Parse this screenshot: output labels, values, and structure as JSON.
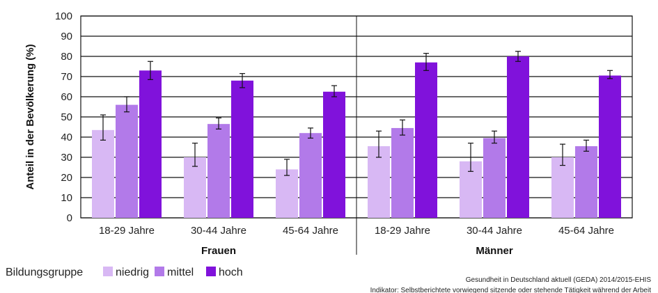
{
  "chart_data": {
    "type": "bar",
    "title": "",
    "ylabel": "Anteil in der Bevölkerung (%)",
    "ylim": [
      0,
      100
    ],
    "yticks": [
      0,
      10,
      20,
      30,
      40,
      50,
      60,
      70,
      80,
      90,
      100
    ],
    "grid": true,
    "groups": [
      {
        "name": "Frauen",
        "categories": [
          "18-29 Jahre",
          "30-44 Jahre",
          "45-64 Jahre"
        ],
        "series": [
          {
            "name": "niedrig",
            "values": [
              43.5,
              30,
              24
            ],
            "error_low": [
              38.5,
              25.5,
              21
            ],
            "error_high": [
              51,
              37,
              29
            ]
          },
          {
            "name": "mittel",
            "values": [
              56,
              46.5,
              42
            ],
            "error_low": [
              52.5,
              44,
              39.5
            ],
            "error_high": [
              60,
              49.5,
              44.5
            ]
          },
          {
            "name": "hoch",
            "values": [
              73,
              68,
              62.5
            ],
            "error_low": [
              68.5,
              64.5,
              60
            ],
            "error_high": [
              77.5,
              71.5,
              65.5
            ]
          }
        ]
      },
      {
        "name": "Männer",
        "categories": [
          "18-29 Jahre",
          "30-44 Jahre",
          "45-64 Jahre"
        ],
        "series": [
          {
            "name": "niedrig",
            "values": [
              35.5,
              28,
              30
            ],
            "error_low": [
              30,
              23,
              26
            ],
            "error_high": [
              43,
              37,
              36.5
            ]
          },
          {
            "name": "mittel",
            "values": [
              44.5,
              39.5,
              35.5
            ],
            "error_low": [
              41,
              37,
              33
            ],
            "error_high": [
              48.5,
              43,
              38.5
            ]
          },
          {
            "name": "hoch",
            "values": [
              77,
              80,
              70.5
            ],
            "error_low": [
              73,
              77.5,
              69
            ],
            "error_high": [
              81.5,
              82.5,
              73
            ]
          }
        ]
      }
    ],
    "legend": {
      "title": "Bildungsgruppe",
      "placement": "bottom-left",
      "items": [
        "niedrig",
        "mittel",
        "hoch"
      ]
    },
    "colors": {
      "niedrig": "#d8b8f4",
      "mittel": "#b27ae9",
      "hoch": "#8012db"
    },
    "source_lines": [
      "Gesundheit in Deutschland aktuell (GEDA) 2014/2015-EHIS",
      "Indikator: Selbstberichtete vorwiegend sitzende oder stehende Tätigkeit während der Arbeit"
    ]
  }
}
